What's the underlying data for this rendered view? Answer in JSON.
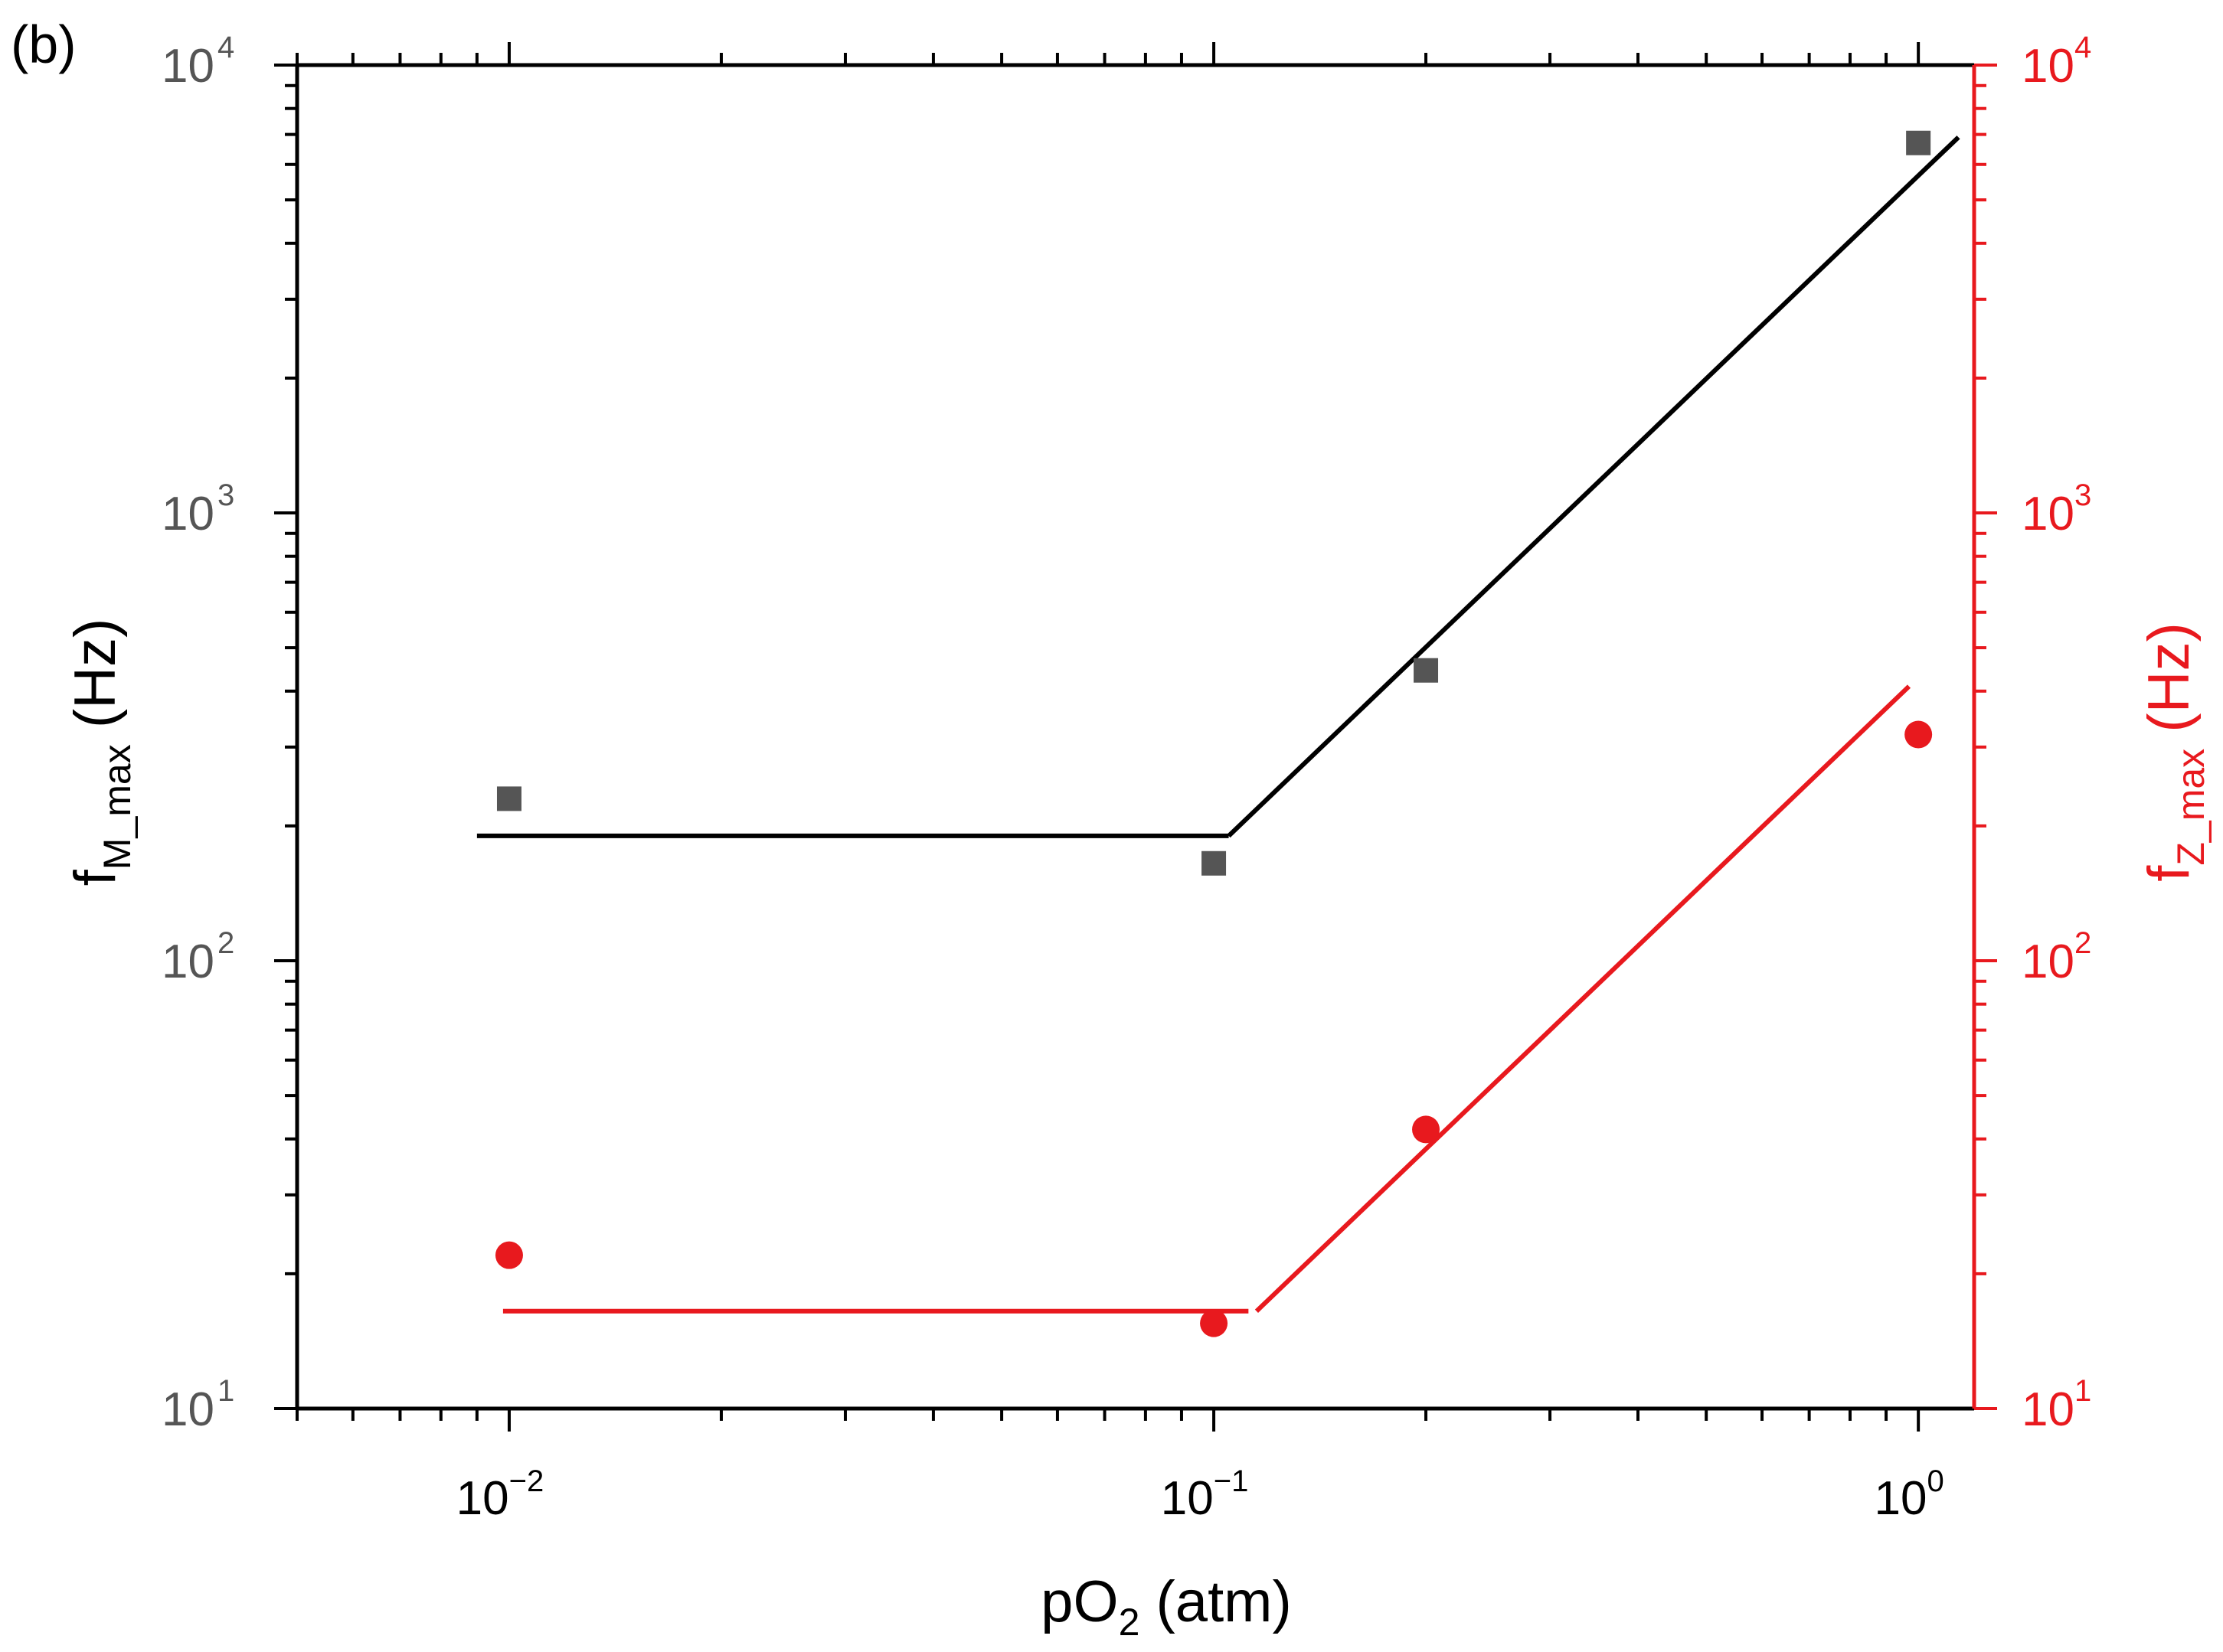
{
  "chart_data": {
    "type": "scatter",
    "panel_label": "(b)",
    "x_axis": {
      "scale": "log",
      "range": [
        0.005,
        1.2
      ],
      "label_main": "pO",
      "label_sub": "2",
      "label_tail": " (atm)",
      "ticks": [
        {
          "value": 0.01,
          "base": "10",
          "exp": "−2"
        },
        {
          "value": 0.1,
          "base": "10",
          "exp": "−1"
        },
        {
          "value": 1,
          "base": "10",
          "exp": "0"
        }
      ]
    },
    "y_left": {
      "scale": "log",
      "range": [
        10,
        10000
      ],
      "label_main": "f",
      "label_sub": "M_max",
      "label_tail": " (Hz)",
      "color": "#000000",
      "tick_color": "#555555",
      "ticks": [
        {
          "value": 10,
          "base": "10",
          "exp": "1"
        },
        {
          "value": 100,
          "base": "10",
          "exp": "2"
        },
        {
          "value": 1000,
          "base": "10",
          "exp": "3"
        },
        {
          "value": 10000,
          "base": "10",
          "exp": "4"
        }
      ]
    },
    "y_right": {
      "scale": "log",
      "range": [
        10,
        10000
      ],
      "label_main": "f",
      "label_sub": "Z_max",
      "label_tail": " (Hz)",
      "color": "#e8191e",
      "ticks": [
        {
          "value": 10,
          "base": "10",
          "exp": "1"
        },
        {
          "value": 100,
          "base": "10",
          "exp": "2"
        },
        {
          "value": 1000,
          "base": "10",
          "exp": "3"
        },
        {
          "value": 10000,
          "base": "10",
          "exp": "4"
        }
      ]
    },
    "series": [
      {
        "name": "fM_max",
        "axis": "left",
        "marker": "square",
        "color": "#555555",
        "x": [
          0.01,
          0.1,
          0.2,
          1.0
        ],
        "y": [
          230,
          165,
          445,
          6700
        ]
      },
      {
        "name": "fZ_max",
        "axis": "right",
        "marker": "circle",
        "color": "#e8191e",
        "x": [
          0.01,
          0.1,
          0.2,
          1.0
        ],
        "y": [
          22,
          15.5,
          42,
          320
        ]
      }
    ],
    "fit_lines": [
      {
        "name": "fM_max fit",
        "axis": "left",
        "color": "#000000",
        "segments": [
          [
            [
              0.009,
              190
            ],
            [
              0.105,
              190
            ]
          ],
          [
            [
              0.105,
              190
            ],
            [
              1.14,
              6900
            ]
          ]
        ]
      },
      {
        "name": "fZ_max fit",
        "axis": "right",
        "color": "#e8191e",
        "segments": [
          [
            [
              0.0098,
              16.5
            ],
            [
              0.112,
              16.5
            ]
          ],
          [
            [
              0.115,
              16.5
            ],
            [
              0.97,
              410
            ]
          ]
        ]
      }
    ]
  }
}
